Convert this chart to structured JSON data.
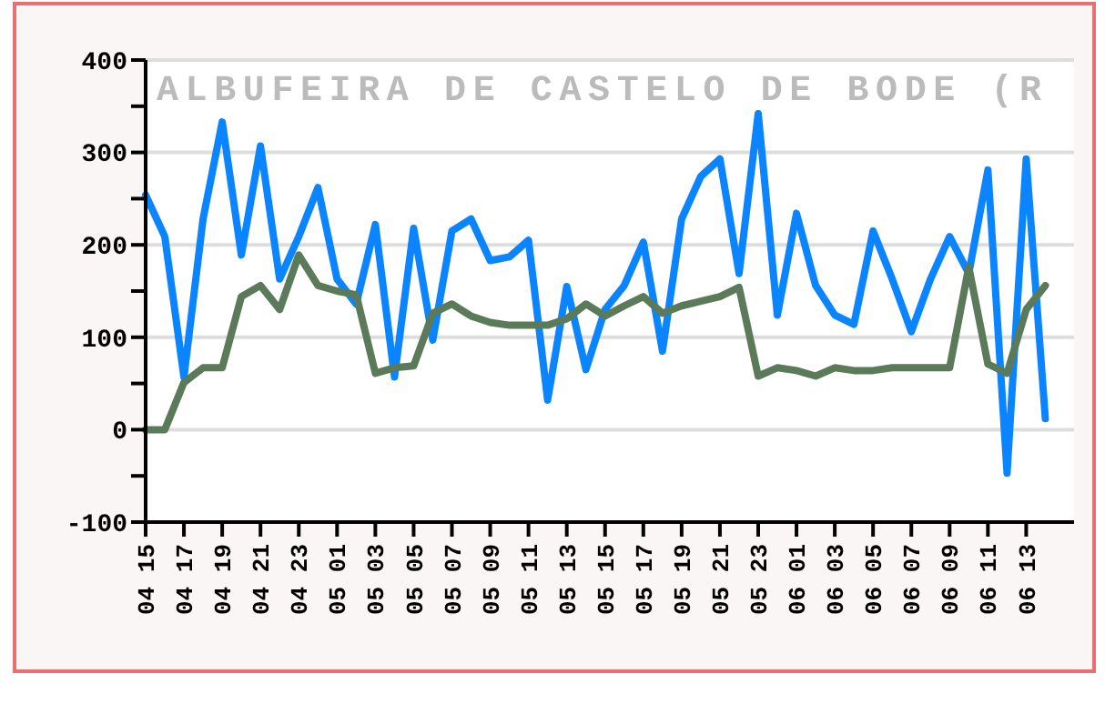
{
  "chart_data": {
    "type": "line",
    "title": "ALBUFEIRA DE CASTELO DE BODE (R",
    "categories": [
      "04 15",
      null,
      "04 17",
      null,
      "04 19",
      null,
      "04 21",
      null,
      "04 23",
      null,
      "05 01",
      null,
      "05 03",
      null,
      "05 05",
      null,
      "05 07",
      null,
      "05 09",
      null,
      "05 11",
      null,
      "05 13",
      null,
      "05 15",
      null,
      "05 17",
      null,
      "05 19",
      null,
      "05 21",
      null,
      "05 23",
      null,
      "06 01",
      null,
      "06 03",
      null,
      "06 05",
      null,
      "06 07",
      null,
      "06 09",
      null,
      "06 11",
      null,
      "06 13",
      null
    ],
    "series": [
      {
        "color": "#0a84ff",
        "values": [
          254,
          209,
          57,
          228,
          333,
          189,
          307,
          163,
          209,
          262,
          163,
          136,
          222,
          57,
          218,
          97,
          215,
          228,
          183,
          187,
          205,
          32,
          155,
          65,
          130,
          156,
          203,
          85,
          228,
          274,
          293,
          169,
          342,
          124,
          234,
          156,
          124,
          114,
          215,
          163,
          106,
          163,
          209,
          169,
          281,
          -47,
          293,
          12
        ]
      },
      {
        "color": "#5a7a5a",
        "values": [
          0,
          0,
          51,
          67,
          67,
          144,
          156,
          130,
          189,
          156,
          150,
          146,
          61,
          67,
          69,
          126,
          136,
          123,
          116,
          113,
          113,
          113,
          120,
          136,
          123,
          134,
          144,
          126,
          134,
          139,
          144,
          154,
          58,
          67,
          64,
          58,
          67,
          64,
          64,
          67,
          67,
          67,
          67,
          176,
          71,
          61,
          130,
          156
        ]
      }
    ],
    "ylim": [
      -100,
      400
    ],
    "yticks": [
      -100,
      {
        "value": -50,
        "label": null
      },
      0,
      {
        "value": 50,
        "label": null
      },
      100,
      {
        "value": 150,
        "label": null
      },
      200,
      {
        "value": 250,
        "label": null
      },
      300,
      {
        "value": 350,
        "label": null
      },
      400
    ],
    "grid": "y",
    "marker": "none",
    "line_style": "solid"
  }
}
